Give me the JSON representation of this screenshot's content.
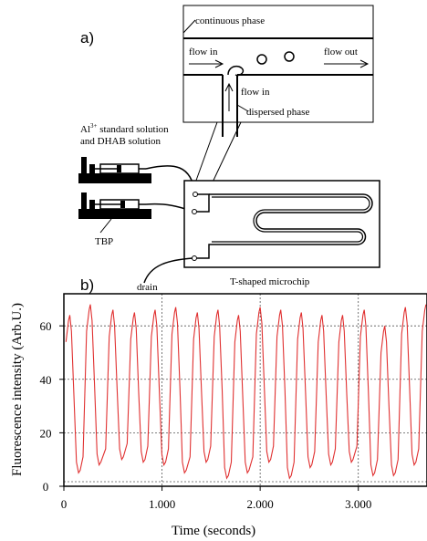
{
  "panel_a": {
    "label": "a)",
    "inset": {
      "continuous_phase": "continuous phase",
      "flow_in_left": "flow in",
      "flow_out": "flow out",
      "flow_in_bottom": "flow in",
      "dispersed_phase": "dispersed phase"
    },
    "syringe_top_label_line1": "Al",
    "syringe_top_label_sup": "3+",
    "syringe_top_label_line1_rest": " standard solution",
    "syringe_top_label_line2": "and DHAB solution",
    "syringe_bottom_label": "TBP",
    "drain_label": "drain",
    "chip_label": "T-shaped microchip"
  },
  "panel_b": {
    "label": "b)"
  },
  "chart_data": {
    "type": "line",
    "xlabel": "Time (seconds)",
    "ylabel": "Fluorescence intensity (Arb.U.)",
    "xlim": [
      0,
      3.7
    ],
    "ylim": [
      0,
      72
    ],
    "x_ticks": [
      0,
      1.0,
      2.0,
      3.0
    ],
    "x_tick_labels": [
      "0",
      "1.000",
      "2.000",
      "3.000"
    ],
    "y_ticks": [
      0,
      20,
      40,
      60
    ],
    "y_tick_labels": [
      "0",
      "20",
      "40",
      "60"
    ],
    "grid": true,
    "line_color": "#e03030",
    "series": [
      {
        "peaks": [
          0.06,
          0.27,
          0.5,
          0.72,
          0.93,
          1.14,
          1.36,
          1.57,
          1.78,
          2.0,
          2.21,
          2.42,
          2.63,
          2.84,
          3.06,
          3.27,
          3.48,
          3.69
        ],
        "peak_values": [
          64,
          68,
          66,
          65,
          66,
          67,
          65,
          66,
          64,
          67,
          66,
          65,
          64,
          64,
          66,
          60,
          67,
          68
        ],
        "trough_values": [
          5,
          8,
          10,
          9,
          8,
          5,
          9,
          3,
          5,
          9,
          3,
          7,
          8,
          9,
          4,
          4,
          8,
          14
        ]
      }
    ]
  }
}
